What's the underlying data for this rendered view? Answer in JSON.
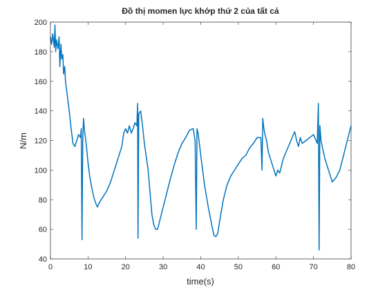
{
  "chart_data": {
    "type": "line",
    "title": "Đồ thị momen lực khớp thứ 2 của tất cả",
    "xlabel": "time(s)",
    "ylabel": "N/m",
    "color": "#0072bd",
    "x": [
      0,
      0.3,
      0.6,
      1,
      1.2,
      1.4,
      1.6,
      2,
      2.3,
      2.5,
      2.8,
      3,
      3.3,
      3.5,
      3.8,
      4,
      4.5,
      5,
      5.5,
      6,
      6.5,
      7,
      7.5,
      8,
      8.2,
      8.4,
      8.6,
      8.8,
      9,
      9.5,
      10,
      10.5,
      11,
      11.5,
      12,
      12.5,
      13,
      14,
      15,
      16,
      17,
      18,
      19,
      19.5,
      20,
      20.5,
      21,
      21.5,
      22,
      22.5,
      23,
      23.2,
      23.3,
      23.5,
      24,
      24.5,
      25,
      26,
      26.5,
      27,
      27.5,
      28,
      28.5,
      29,
      30,
      31,
      32,
      33,
      34,
      35,
      36,
      37,
      38,
      38.5,
      38.8,
      39,
      39.3,
      40,
      41,
      42,
      43,
      43.5,
      44,
      44.5,
      45,
      46,
      47,
      48,
      49,
      50,
      51,
      52,
      53,
      54,
      55,
      56,
      56.3,
      56.5,
      56.8,
      57,
      57.5,
      58,
      59,
      60,
      60.5,
      61,
      62,
      63,
      64,
      65,
      65.5,
      66,
      66.5,
      67,
      68,
      69,
      70,
      71,
      71.3,
      71.5,
      71.7,
      72,
      73,
      74,
      75,
      76,
      77,
      78,
      79,
      80
    ],
    "values": [
      190,
      185,
      192,
      183,
      198,
      180,
      188,
      182,
      190,
      170,
      185,
      175,
      178,
      165,
      170,
      160,
      150,
      140,
      128,
      118,
      116,
      120,
      124,
      122,
      128,
      53,
      120,
      135,
      128,
      118,
      105,
      95,
      88,
      82,
      78,
      75,
      78,
      82,
      86,
      92,
      100,
      108,
      116,
      125,
      128,
      125,
      130,
      125,
      128,
      132,
      130,
      145,
      54,
      138,
      140,
      130,
      118,
      100,
      85,
      70,
      63,
      60,
      60,
      65,
      75,
      85,
      95,
      104,
      112,
      118,
      122,
      127,
      128,
      120,
      60,
      128,
      125,
      110,
      90,
      75,
      62,
      56,
      55,
      57,
      65,
      80,
      90,
      96,
      100,
      104,
      108,
      110,
      115,
      118,
      122,
      122,
      100,
      135,
      128,
      125,
      120,
      112,
      104,
      96,
      100,
      98,
      108,
      114,
      120,
      126,
      120,
      116,
      122,
      118,
      120,
      122,
      124,
      118,
      145,
      46,
      130,
      120,
      108,
      100,
      92,
      95,
      100,
      110,
      120,
      130
    ],
    "xlim": [
      0,
      80
    ],
    "ylim": [
      40,
      200
    ],
    "xticks": [
      0,
      10,
      20,
      30,
      40,
      50,
      60,
      70,
      80
    ],
    "yticks": [
      40,
      60,
      80,
      100,
      120,
      140,
      160,
      180,
      200
    ]
  }
}
